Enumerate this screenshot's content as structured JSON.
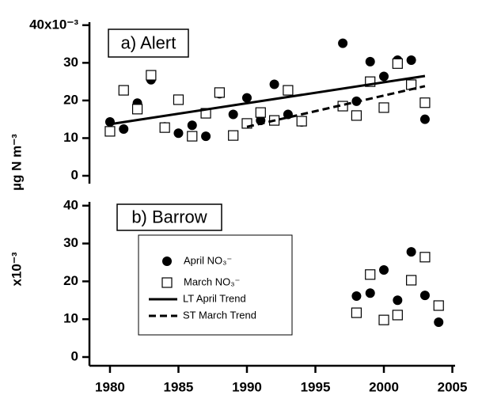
{
  "chart_data": [
    {
      "type": "scatter",
      "title": "a) Alert",
      "ylabel": "µg N m⁻³",
      "xlim": [
        1978.5,
        2005.2
      ],
      "ylim": [
        -2.1,
        40.8
      ],
      "yticks": [
        0,
        10,
        20,
        30,
        {
          "value": 40,
          "label": "40x10⁻³"
        }
      ],
      "series": [
        {
          "name": "April NO₃⁻",
          "marker": "circle",
          "color": "#000000",
          "x": [
            1980,
            1981,
            1982,
            1983,
            1984,
            1985,
            1986,
            1987,
            1988,
            1989,
            1990,
            1991,
            1992,
            1993,
            1994,
            1997,
            1998,
            1999,
            2000,
            2001,
            2002,
            2003
          ],
          "values": [
            14.3,
            12.4,
            19.3,
            25.5,
            13,
            11.3,
            13.4,
            10.5,
            21.8,
            16.3,
            20.7,
            14.7,
            24.3,
            16.3,
            14.3,
            35.2,
            19.8,
            30.3,
            26.4,
            30.7,
            30.7,
            15
          ]
        },
        {
          "name": "March NO₃⁻",
          "marker": "square",
          "color": "#000000",
          "x": [
            1980,
            1981,
            1982,
            1983,
            1984,
            1985,
            1986,
            1987,
            1988,
            1989,
            1990,
            1991,
            1992,
            1993,
            1994,
            1997,
            1998,
            1999,
            2000,
            2001,
            2002,
            2003
          ],
          "values": [
            11.8,
            22.7,
            17.7,
            26.7,
            12.8,
            20.2,
            10.5,
            16.6,
            22.1,
            10.7,
            13.9,
            16.8,
            14.7,
            22.7,
            14.5,
            18.5,
            16,
            25,
            18.1,
            29.8,
            24.2,
            19.4
          ]
        },
        {
          "name": "LT April Trend",
          "marker": "line",
          "style": "solid",
          "color": "#000000",
          "x": [
            1980,
            2003
          ],
          "values": [
            13.7,
            26.5
          ]
        },
        {
          "name": "ST March Trend",
          "marker": "line",
          "style": "dashed",
          "color": "#000000",
          "x": [
            1990,
            2003
          ],
          "values": [
            13,
            23.8
          ]
        }
      ]
    },
    {
      "type": "scatter",
      "title": "b) Barrow",
      "ylabel": "x10⁻³",
      "legend": "upper left",
      "xlim": [
        1978.5,
        2005.2
      ],
      "ylim": [
        -2.3,
        41
      ],
      "xticks": [
        1980,
        1985,
        1990,
        1995,
        2000,
        2005
      ],
      "yticks": [
        0,
        10,
        20,
        30,
        40
      ],
      "series": [
        {
          "marker": "circle",
          "color": "#000000",
          "x": [
            1998,
            1999,
            2000,
            2001,
            2002,
            2003,
            2004
          ],
          "values": [
            16.1,
            16.9,
            23,
            15,
            27.8,
            16.3,
            9.2
          ]
        },
        {
          "marker": "square",
          "color": "#000000",
          "x": [
            1998,
            1999,
            2000,
            2001,
            2002,
            2003,
            2004
          ],
          "values": [
            11.7,
            21.8,
            9.8,
            11.1,
            20.3,
            26.4,
            13.6
          ]
        }
      ]
    }
  ]
}
